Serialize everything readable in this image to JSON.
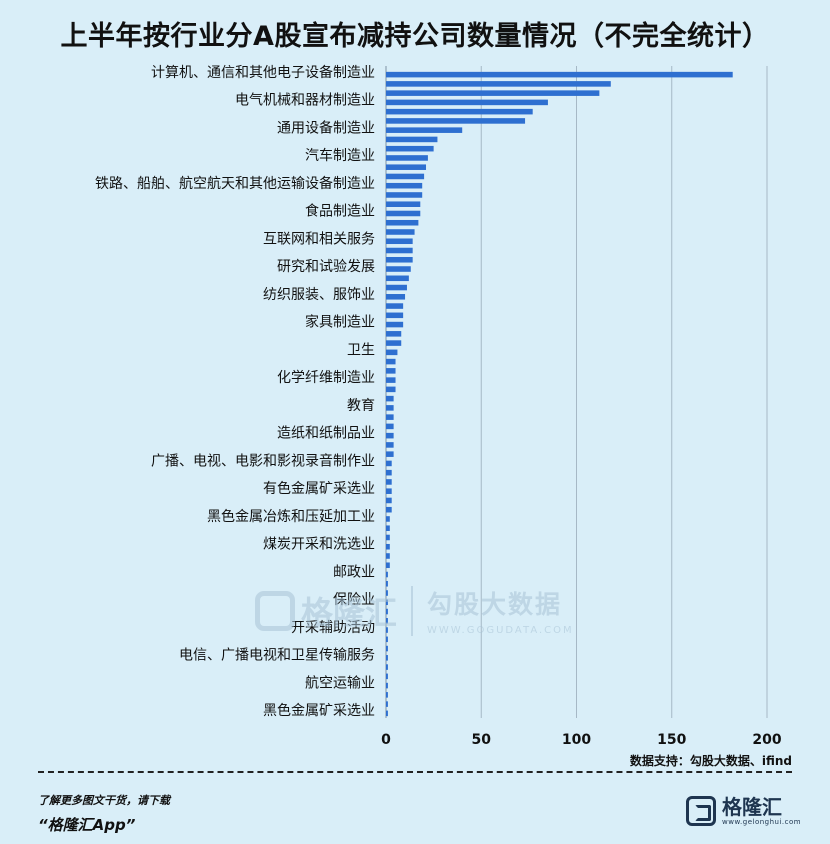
{
  "title": "上半年按行业分A股宣布减持公司数量情况（不完全统计）",
  "source": "数据支持：勾股大数据、ifind",
  "footer": {
    "note": "了解更多图文干货，请下载",
    "app": "“格隆汇App”"
  },
  "brand": {
    "name": "格隆汇",
    "url": "www.gelonghui.com"
  },
  "watermark": {
    "name": "格隆汇",
    "cn": "勾股大数据",
    "url": "WWW.GOGUDATA.COM"
  },
  "colors": {
    "bar": "#2e6fd0",
    "grid": "#a6b8c6",
    "background": "#d9eef8"
  },
  "chart_data": {
    "type": "bar",
    "orientation": "horizontal",
    "title": "上半年按行业分A股宣布减持公司数量情况（不完全统计）",
    "xlabel": "",
    "ylabel": "",
    "xlim": [
      0,
      200
    ],
    "xticks": [
      0,
      50,
      100,
      150,
      200
    ],
    "grid": "vertical",
    "labeled_categories": [
      "计算机、通信和其他电子设备制造业",
      "电气机械和器材制造业",
      "通用设备制造业",
      "汽车制造业",
      "铁路、船舶、航空航天和其他运输设备制造业",
      "食品制造业",
      "互联网和相关服务",
      "研究和试验发展",
      "纺织服装、服饰业",
      "家具制造业",
      "卫生",
      "化学纤维制造业",
      "教育",
      "造纸和纸制品业",
      "广播、电视、电影和影视录音制作业",
      "有色金属矿采选业",
      "黑色金属冶炼和压延加工业",
      "煤炭开采和洗选业",
      "邮政业",
      "保险业",
      "开采辅助活动",
      "电信、广播电视和卫星传输服务",
      "航空运输业",
      "黑色金属矿采选业"
    ],
    "values": [
      182,
      118,
      112,
      85,
      77,
      73,
      40,
      27,
      25,
      22,
      21,
      20,
      19,
      19,
      18,
      18,
      17,
      15,
      14,
      14,
      14,
      13,
      12,
      11,
      10,
      9,
      9,
      9,
      8,
      8,
      6,
      5,
      5,
      5,
      5,
      4,
      4,
      4,
      4,
      4,
      4,
      4,
      3,
      3,
      3,
      3,
      3,
      3,
      2,
      2,
      2,
      2,
      2,
      2,
      1,
      1,
      1,
      1,
      1,
      1,
      1,
      1,
      1,
      1,
      1,
      1,
      1,
      1,
      1,
      1
    ]
  }
}
